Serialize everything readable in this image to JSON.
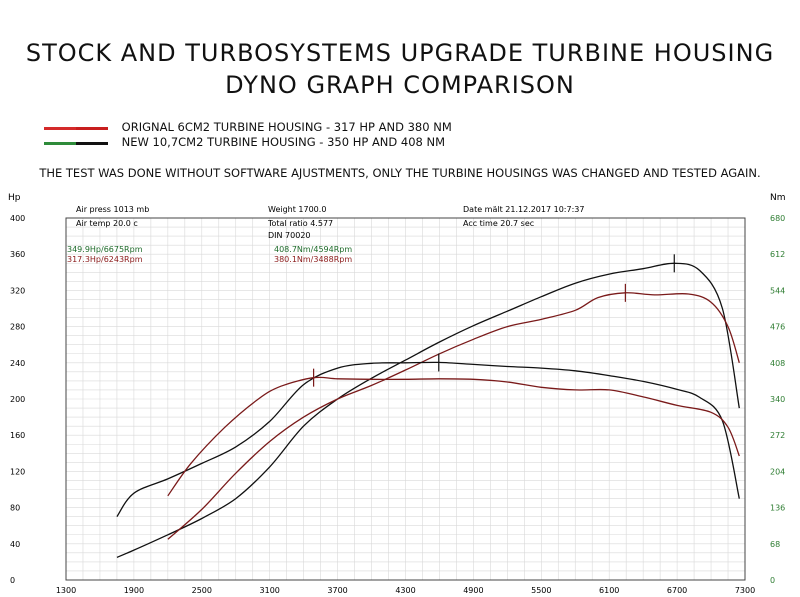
{
  "header": {
    "title_line1": "STOCK AND TURBOSYSTEMS UPGRADE TURBINE HOUSING",
    "title_line2": "DYNO GRAPH COMPARISON"
  },
  "legend": [
    {
      "label": "ORIGNAL 6CM2 TURBINE HOUSING - 317 HP AND 380 NM",
      "colors": [
        "#d42a2a",
        "#c81e1e"
      ]
    },
    {
      "label": "NEW 10,7CM2 TURBINE HOUSING - 350 HP AND 408 NM",
      "colors": [
        "#2e8b3a",
        "#111111"
      ]
    }
  ],
  "note": "THE TEST WAS DONE WITHOUT SOFTWARE AJUSTMENTS, ONLY THE TURBINE HOUSINGS WAS CHANGED AND TESTED AGAIN.",
  "info": {
    "air_press": "Air press  1013 mb",
    "air_temp": "Air temp  20.0 c",
    "weight": "Weight  1700.0",
    "total_ratio": "Total ratio 4.577",
    "din": "DIN 70020",
    "date": "Date mält 21.12.2017 10:7:37",
    "acc_time": "Acc time  20.7 sec"
  },
  "peaks": {
    "new_hp": "349.9Hp/6675Rpm",
    "orig_hp": "317.3Hp/6243Rpm",
    "new_nm": "408.7Nm/4594Rpm",
    "orig_nm": "380.1Nm/3488Rpm"
  },
  "colors": {
    "new_peak_text": "#1e6b2a",
    "orig_peak_text": "#8b1a1a",
    "right_axis_text": "#2e7d32",
    "new_line": "#111111",
    "orig_line": "#7a1a1a"
  },
  "chart_data": {
    "type": "line",
    "title": "",
    "xlabel": "",
    "ylabel_left": "Hp",
    "ylabel_right": "Nm",
    "xlim": [
      1300,
      7300
    ],
    "ylim_left": [
      0,
      400
    ],
    "ylim_right": [
      0,
      680
    ],
    "grid": true,
    "x_ticks": [
      1300,
      1900,
      2500,
      3100,
      3700,
      4300,
      4900,
      5500,
      6100,
      6700,
      7300
    ],
    "y_ticks_left": [
      0,
      40,
      80,
      120,
      160,
      200,
      240,
      280,
      320,
      360,
      400
    ],
    "y_ticks_right": [
      0,
      68,
      136,
      204,
      272,
      340,
      408,
      476,
      544,
      612,
      680
    ],
    "series": [
      {
        "name": "NEW 10,7CM2 TURBINE HOUSING - 350 HP AND 408 NM",
        "measure": "power",
        "axis": "left",
        "x": [
          1750,
          1900,
          2200,
          2500,
          2800,
          3100,
          3400,
          3700,
          4000,
          4300,
          4600,
          4900,
          5200,
          5500,
          5800,
          6100,
          6400,
          6675,
          6900,
          7100,
          7250
        ],
        "y": [
          25,
          33,
          50,
          68,
          90,
          125,
          170,
          200,
          223,
          243,
          263,
          281,
          297,
          313,
          328,
          338,
          344,
          349.9,
          342,
          300,
          190
        ]
      },
      {
        "name": "ORIGNAL 6CM2 TURBINE HOUSING - 317 HP AND 380 NM",
        "measure": "power",
        "axis": "left",
        "x": [
          2200,
          2500,
          2800,
          3100,
          3400,
          3700,
          4000,
          4300,
          4600,
          4900,
          5200,
          5500,
          5800,
          6000,
          6243,
          6500,
          6800,
          7000,
          7150,
          7250
        ],
        "y": [
          45,
          78,
          118,
          153,
          180,
          200,
          215,
          232,
          250,
          266,
          280,
          288,
          298,
          312,
          317.3,
          315,
          316,
          307,
          280,
          240
        ]
      },
      {
        "name": "NEW 10,7CM2 TURBINE HOUSING - 350 HP AND 408 NM",
        "measure": "torque",
        "axis": "right",
        "x": [
          1750,
          1900,
          2200,
          2500,
          2800,
          3100,
          3400,
          3700,
          4000,
          4300,
          4594,
          4900,
          5200,
          5500,
          5800,
          6100,
          6400,
          6700,
          6900,
          7100,
          7250
        ],
        "y": [
          119,
          163,
          190,
          219,
          250,
          298,
          367,
          398,
          407,
          408,
          408.7,
          405,
          401,
          398,
          393,
          384,
          373,
          358,
          343,
          299,
          153
        ]
      },
      {
        "name": "ORIGNAL 6CM2 TURBINE HOUSING - 317 HP AND 380 NM",
        "measure": "torque",
        "axis": "right",
        "x": [
          2200,
          2400,
          2700,
          3000,
          3200,
          3488,
          3700,
          4000,
          4300,
          4600,
          4900,
          5200,
          5500,
          5800,
          6100,
          6400,
          6700,
          7000,
          7150,
          7250
        ],
        "y": [
          158,
          218,
          286,
          340,
          364,
          380.1,
          378,
          377,
          377,
          378,
          377,
          372,
          362,
          357,
          357,
          344,
          328,
          315,
          287,
          233
        ]
      }
    ]
  }
}
